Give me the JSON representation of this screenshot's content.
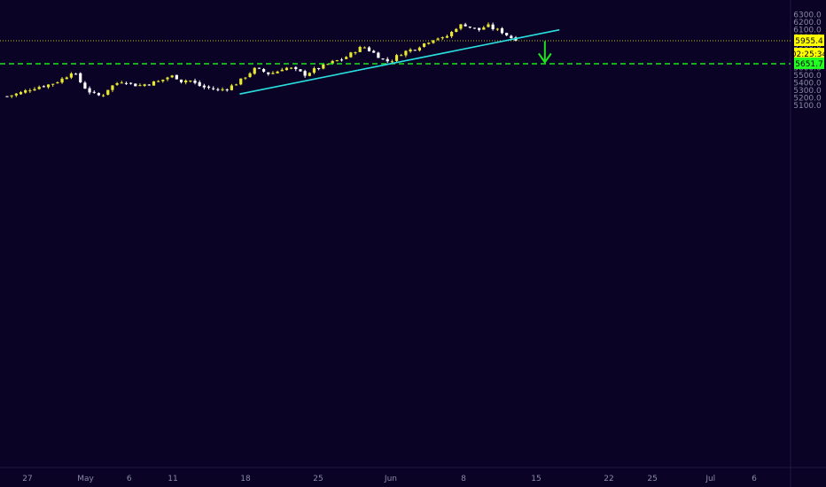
{
  "chart_data": {
    "type": "candlestick",
    "y_axis": {
      "ticks": [
        "5100.0",
        "5200.0",
        "5300.0",
        "5400.0",
        "5500.0",
        "5600.0",
        "5700.0",
        "5800.0",
        "5900.0",
        "6000.0",
        "6100.0",
        "6200.0",
        "6300.0"
      ],
      "range": [
        5080,
        6330
      ],
      "side": "right"
    },
    "x_axis": {
      "ticks": [
        {
          "label": "27",
          "index": 1
        },
        {
          "label": "May",
          "index": 5
        },
        {
          "label": "6",
          "index": 8
        },
        {
          "label": "11",
          "index": 11
        },
        {
          "label": "18",
          "index": 16
        },
        {
          "label": "25",
          "index": 21
        },
        {
          "label": "Jun",
          "index": 26
        },
        {
          "label": "8",
          "index": 31
        },
        {
          "label": "15",
          "index": 36
        },
        {
          "label": "22",
          "index": 41
        },
        {
          "label": "25",
          "index": 44
        },
        {
          "label": "Jul",
          "index": 48
        },
        {
          "label": "6",
          "index": 51
        }
      ]
    },
    "series": [
      {
        "type": "close_path",
        "values": [
          [
            0,
            5220
          ],
          [
            1,
            5270
          ],
          [
            1.5,
            5310
          ],
          [
            2,
            5340
          ],
          [
            3,
            5380
          ],
          [
            3.5,
            5420
          ],
          [
            4,
            5470
          ],
          [
            4.5,
            5560
          ],
          [
            5,
            5420
          ],
          [
            5.5,
            5300
          ],
          [
            6,
            5250
          ],
          [
            6.5,
            5220
          ],
          [
            7,
            5330
          ],
          [
            7.5,
            5390
          ],
          [
            8,
            5430
          ],
          [
            8.5,
            5390
          ],
          [
            9,
            5360
          ],
          [
            9.5,
            5380
          ],
          [
            10,
            5400
          ],
          [
            10.5,
            5420
          ],
          [
            11,
            5470
          ],
          [
            11.5,
            5490
          ],
          [
            12,
            5420
          ],
          [
            12.5,
            5440
          ],
          [
            13,
            5380
          ],
          [
            13.5,
            5340
          ],
          [
            14,
            5330
          ],
          [
            14.5,
            5300
          ],
          [
            15,
            5320
          ],
          [
            15.5,
            5360
          ],
          [
            16,
            5420
          ],
          [
            16.5,
            5500
          ],
          [
            17,
            5580
          ],
          [
            17.5,
            5560
          ],
          [
            18,
            5520
          ],
          [
            18.5,
            5540
          ],
          [
            19,
            5600
          ],
          [
            19.5,
            5590
          ],
          [
            20,
            5550
          ],
          [
            20.5,
            5510
          ],
          [
            21,
            5560
          ],
          [
            21.5,
            5600
          ],
          [
            22,
            5640
          ],
          [
            22.5,
            5680
          ],
          [
            23,
            5710
          ],
          [
            23.5,
            5760
          ],
          [
            24,
            5830
          ],
          [
            24.5,
            5880
          ],
          [
            25,
            5820
          ],
          [
            25.5,
            5760
          ],
          [
            26,
            5680
          ],
          [
            26.5,
            5700
          ],
          [
            27,
            5780
          ],
          [
            27.5,
            5820
          ],
          [
            28,
            5850
          ],
          [
            28.5,
            5900
          ],
          [
            29,
            5950
          ],
          [
            29.5,
            6000
          ],
          [
            30,
            5980
          ],
          [
            30.5,
            6050
          ],
          [
            31,
            6150
          ],
          [
            31.5,
            6170
          ],
          [
            32,
            6120
          ],
          [
            32.5,
            6100
          ],
          [
            33,
            6160
          ],
          [
            33.5,
            6110
          ],
          [
            34,
            6080
          ],
          [
            34.5,
            6020
          ],
          [
            35,
            5955.4
          ]
        ]
      }
    ],
    "horizontal_lines": [
      {
        "name": "last-price",
        "price": 5955.4,
        "label": "5955.4",
        "countdown": "02:25:34",
        "style": "dotted",
        "color": "#c8c800"
      },
      {
        "name": "target",
        "price": 5651.7,
        "label": "5651.7",
        "style": "dashed",
        "color": "#22e022"
      }
    ],
    "trendline": {
      "from": [
        16,
        5250
      ],
      "to": [
        38,
        6100
      ],
      "color": "#29e0df"
    },
    "arrow": {
      "x": 37,
      "from": 5950,
      "to": 5670,
      "direction": "down",
      "color": "#22e022"
    }
  }
}
